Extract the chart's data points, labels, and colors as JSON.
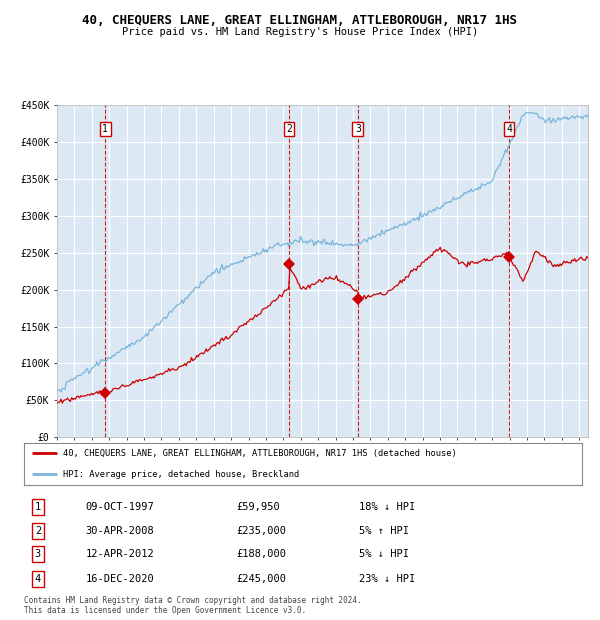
{
  "title": "40, CHEQUERS LANE, GREAT ELLINGHAM, ATTLEBOROUGH, NR17 1HS",
  "subtitle": "Price paid vs. HM Land Registry's House Price Index (HPI)",
  "background_color": "#dce9f5",
  "grid_color": "#ffffff",
  "ylim": [
    0,
    450000
  ],
  "yticks": [
    0,
    50000,
    100000,
    150000,
    200000,
    250000,
    300000,
    350000,
    400000,
    450000
  ],
  "ytick_labels": [
    "£0",
    "£50K",
    "£100K",
    "£150K",
    "£200K",
    "£250K",
    "£300K",
    "£350K",
    "£400K",
    "£450K"
  ],
  "xlim_start": 1995.0,
  "xlim_end": 2025.5,
  "xticks": [
    1995,
    1996,
    1997,
    1998,
    1999,
    2000,
    2001,
    2002,
    2003,
    2004,
    2005,
    2006,
    2007,
    2008,
    2009,
    2010,
    2011,
    2012,
    2013,
    2014,
    2015,
    2016,
    2017,
    2018,
    2019,
    2020,
    2021,
    2022,
    2023,
    2024,
    2025
  ],
  "sale_dates": [
    1997.77,
    2008.33,
    2012.28,
    2020.96
  ],
  "sale_prices": [
    59950,
    235000,
    188000,
    245000
  ],
  "sale_labels": [
    "1",
    "2",
    "3",
    "4"
  ],
  "red_line_color": "#cc0000",
  "blue_line_color": "#7ab4d8",
  "sale_marker_color": "#cc0000",
  "dashed_line_color": "#cc0000",
  "legend_line1": "40, CHEQUERS LANE, GREAT ELLINGHAM, ATTLEBOROUGH, NR17 1HS (detached house)",
  "legend_line2": "HPI: Average price, detached house, Breckland",
  "table_rows": [
    [
      "1",
      "09-OCT-1997",
      "£59,950",
      "18% ↓ HPI"
    ],
    [
      "2",
      "30-APR-2008",
      "£235,000",
      "5% ↑ HPI"
    ],
    [
      "3",
      "12-APR-2012",
      "£188,000",
      "5% ↓ HPI"
    ],
    [
      "4",
      "16-DEC-2020",
      "£245,000",
      "23% ↓ HPI"
    ]
  ],
  "footer": "Contains HM Land Registry data © Crown copyright and database right 2024.\nThis data is licensed under the Open Government Licence v3.0."
}
